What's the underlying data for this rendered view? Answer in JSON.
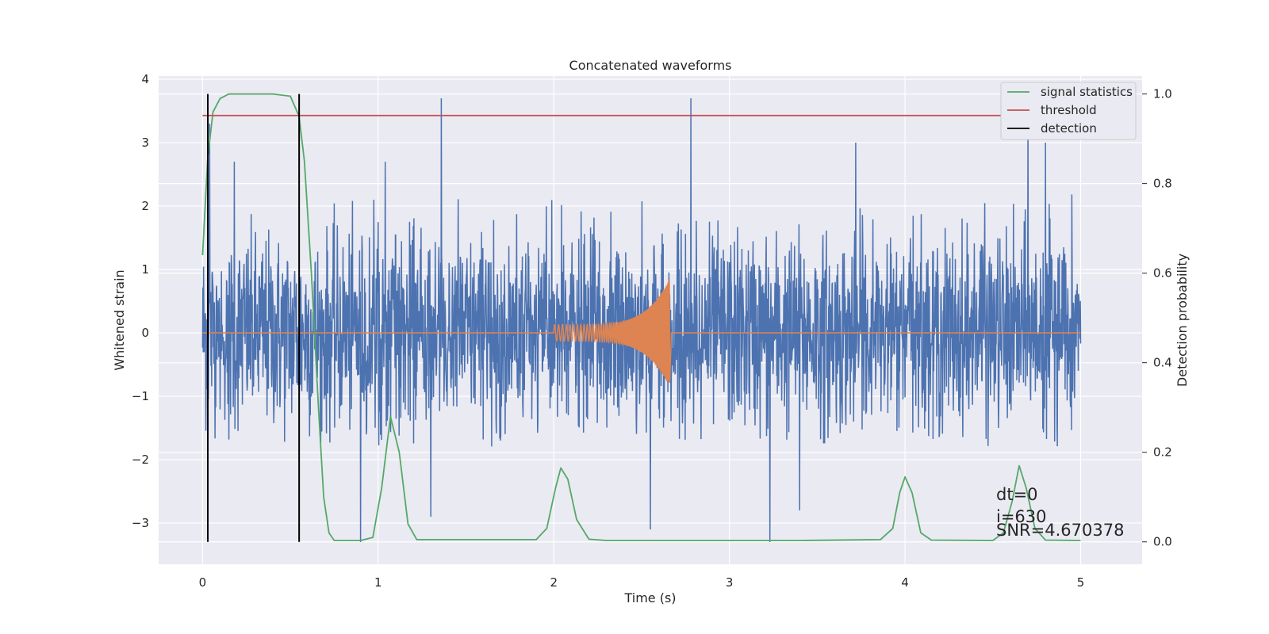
{
  "chart_data": {
    "type": "line",
    "title": "Concatenated waveforms",
    "xlabel": "Time (s)",
    "ylabel": "Whitened strain",
    "ylabel_right": "Detection probability",
    "xlim": [
      -0.25,
      5.35
    ],
    "ylim": [
      -3.65,
      4.05
    ],
    "ylim_right": [
      -0.05,
      1.04
    ],
    "x_ticks": [
      0,
      1,
      2,
      3,
      4,
      5
    ],
    "y_ticks": [
      -3,
      -2,
      -1,
      0,
      1,
      2,
      3,
      4
    ],
    "y_ticks_right": [
      0.0,
      0.2,
      0.4,
      0.6,
      0.8,
      1.0
    ],
    "grid": true,
    "legend_position": "top-right",
    "colors": {
      "noise": "#4c72b0",
      "injection": "#dd8452",
      "statistics": "#55a868",
      "threshold": "#c44e52",
      "detection": "#000000",
      "background": "#eaeaf2",
      "grid": "#ffffff"
    },
    "series": [
      {
        "name": "",
        "axis": "left",
        "kind": "noise",
        "x_range": [
          0,
          5
        ],
        "typical_band": [
          -1.8,
          2.2
        ],
        "peaks": [
          {
            "x": 0.04,
            "y": 3.3
          },
          {
            "x": 0.18,
            "y": 2.7
          },
          {
            "x": 1.04,
            "y": 2.7
          },
          {
            "x": 1.36,
            "y": 3.7
          },
          {
            "x": 2.78,
            "y": 3.7
          },
          {
            "x": 3.72,
            "y": 3.0
          },
          {
            "x": 4.7,
            "y": 3.4
          },
          {
            "x": 4.8,
            "y": 3.0
          }
        ],
        "troughs": [
          {
            "x": 0.9,
            "y": -3.3
          },
          {
            "x": 1.3,
            "y": -2.9
          },
          {
            "x": 2.55,
            "y": -3.1
          },
          {
            "x": 3.23,
            "y": -3.3
          },
          {
            "x": 3.4,
            "y": -2.8
          }
        ]
      },
      {
        "name": "",
        "axis": "left",
        "kind": "injection",
        "chirp_start": 2.0,
        "chirp_end": 2.66,
        "amp_start": 0.13,
        "amp_peak": 0.85
      },
      {
        "name": "signal statistics",
        "axis": "right",
        "points": [
          [
            0.0,
            0.64
          ],
          [
            0.03,
            0.86
          ],
          [
            0.06,
            0.96
          ],
          [
            0.1,
            0.99
          ],
          [
            0.15,
            1.0
          ],
          [
            0.4,
            1.0
          ],
          [
            0.5,
            0.995
          ],
          [
            0.55,
            0.95
          ],
          [
            0.58,
            0.85
          ],
          [
            0.62,
            0.6
          ],
          [
            0.66,
            0.3
          ],
          [
            0.69,
            0.1
          ],
          [
            0.72,
            0.02
          ],
          [
            0.75,
            0.003
          ],
          [
            0.9,
            0.003
          ],
          [
            0.97,
            0.01
          ],
          [
            1.02,
            0.12
          ],
          [
            1.07,
            0.28
          ],
          [
            1.12,
            0.2
          ],
          [
            1.17,
            0.04
          ],
          [
            1.22,
            0.005
          ],
          [
            1.9,
            0.005
          ],
          [
            1.96,
            0.03
          ],
          [
            2.01,
            0.12
          ],
          [
            2.04,
            0.165
          ],
          [
            2.08,
            0.14
          ],
          [
            2.13,
            0.05
          ],
          [
            2.2,
            0.006
          ],
          [
            2.3,
            0.003
          ],
          [
            2.9,
            0.003
          ],
          [
            3.4,
            0.003
          ],
          [
            3.86,
            0.005
          ],
          [
            3.93,
            0.03
          ],
          [
            3.97,
            0.11
          ],
          [
            4.0,
            0.145
          ],
          [
            4.04,
            0.11
          ],
          [
            4.09,
            0.02
          ],
          [
            4.15,
            0.004
          ],
          [
            4.5,
            0.003
          ],
          [
            4.56,
            0.02
          ],
          [
            4.61,
            0.09
          ],
          [
            4.65,
            0.17
          ],
          [
            4.69,
            0.12
          ],
          [
            4.74,
            0.03
          ],
          [
            4.8,
            0.004
          ],
          [
            5.0,
            0.003
          ]
        ]
      },
      {
        "name": "threshold",
        "axis": "right",
        "points": [
          [
            0.0,
            0.952
          ],
          [
            5.1,
            0.952
          ]
        ]
      },
      {
        "name": "detection",
        "axis": "right",
        "vlines": [
          0.03,
          0.55
        ],
        "range": [
          0.0,
          1.0
        ]
      }
    ],
    "annotations": [
      "dt=0",
      "i=630",
      "SNR=4.670378"
    ]
  }
}
